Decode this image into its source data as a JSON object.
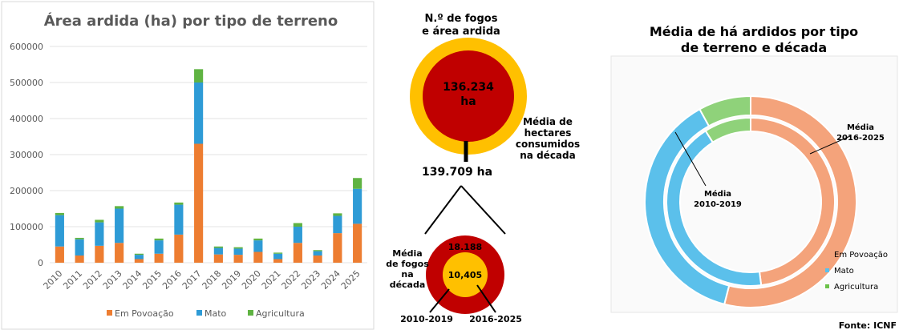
{
  "chart_data": [
    {
      "type": "bar",
      "stacked": true,
      "title": "Área ardida (ha) por tipo de terreno",
      "categories": [
        "2010",
        "2011",
        "2012",
        "2013",
        "2014",
        "2015",
        "2016",
        "2017",
        "2018",
        "2019",
        "2020",
        "2021",
        "2022",
        "2023",
        "2024",
        "2025"
      ],
      "series": [
        {
          "name": "Em Povoação",
          "color": "#ED7D31",
          "values": [
            45000,
            20000,
            47000,
            55000,
            10000,
            25000,
            78000,
            330000,
            23000,
            22000,
            30000,
            10000,
            55000,
            20000,
            82000,
            108000
          ]
        },
        {
          "name": "Mato",
          "color": "#2E9BD6",
          "values": [
            87000,
            45000,
            65000,
            95000,
            12000,
            37000,
            83000,
            170000,
            18000,
            17000,
            32000,
            15000,
            45000,
            12000,
            48000,
            97000
          ]
        },
        {
          "name": "Agricultura",
          "color": "#5FB342",
          "values": [
            6000,
            4000,
            7000,
            7000,
            3000,
            5000,
            6000,
            37000,
            4000,
            4000,
            5000,
            3000,
            10000,
            3000,
            7000,
            30000
          ]
        }
      ],
      "ylim": [
        0,
        600000
      ],
      "yticks": [
        "0",
        "100000",
        "200000",
        "300000",
        "400000",
        "500000",
        "600000"
      ],
      "grid": true,
      "legend_position": "bottom"
    },
    {
      "type": "infographic",
      "title_line1": "N.º de fogos",
      "title_line2": "e área ardida",
      "top_circle_value": "136.234",
      "top_circle_unit": "ha",
      "hectares_label": [
        "Média de",
        "hectares",
        "consumidos",
        "na década"
      ],
      "connector_value": "139.709 ha",
      "fires_label": [
        "Média",
        "de fogos",
        "na",
        "década"
      ],
      "outer_fires_value": "18.188",
      "inner_fires_value": "10,405",
      "decade_left": "2010-2019",
      "decade_right": "2016-2025",
      "colors": {
        "yellow": "#FFC000",
        "red": "#C00000"
      }
    },
    {
      "type": "pie",
      "variant": "double-donut",
      "title_line1": "Média de há ardidos por tipo",
      "title_line2": "de terreno e década",
      "outer_ring": {
        "label_line1": "Média",
        "label_line2": "2016-2025",
        "values": [
          {
            "name": "Em Povoação",
            "value": 54
          },
          {
            "name": "Mato",
            "value": 38
          },
          {
            "name": "Agricultura",
            "value": 8
          }
        ]
      },
      "inner_ring": {
        "label_line1": "Média",
        "label_line2": "2010-2019",
        "values": [
          {
            "name": "Em Povoação",
            "value": 48
          },
          {
            "name": "Mato",
            "value": 43
          },
          {
            "name": "Agricultura",
            "value": 9
          }
        ]
      },
      "legend": [
        {
          "name": "Em Povoação",
          "color": "#F4A37B"
        },
        {
          "name": "Mato",
          "color": "#5BC0EB"
        },
        {
          "name": "Agricultura",
          "color": "#6CC24A"
        }
      ],
      "legend_position": "bottom-right",
      "source": "Fonte: ICNF"
    }
  ]
}
